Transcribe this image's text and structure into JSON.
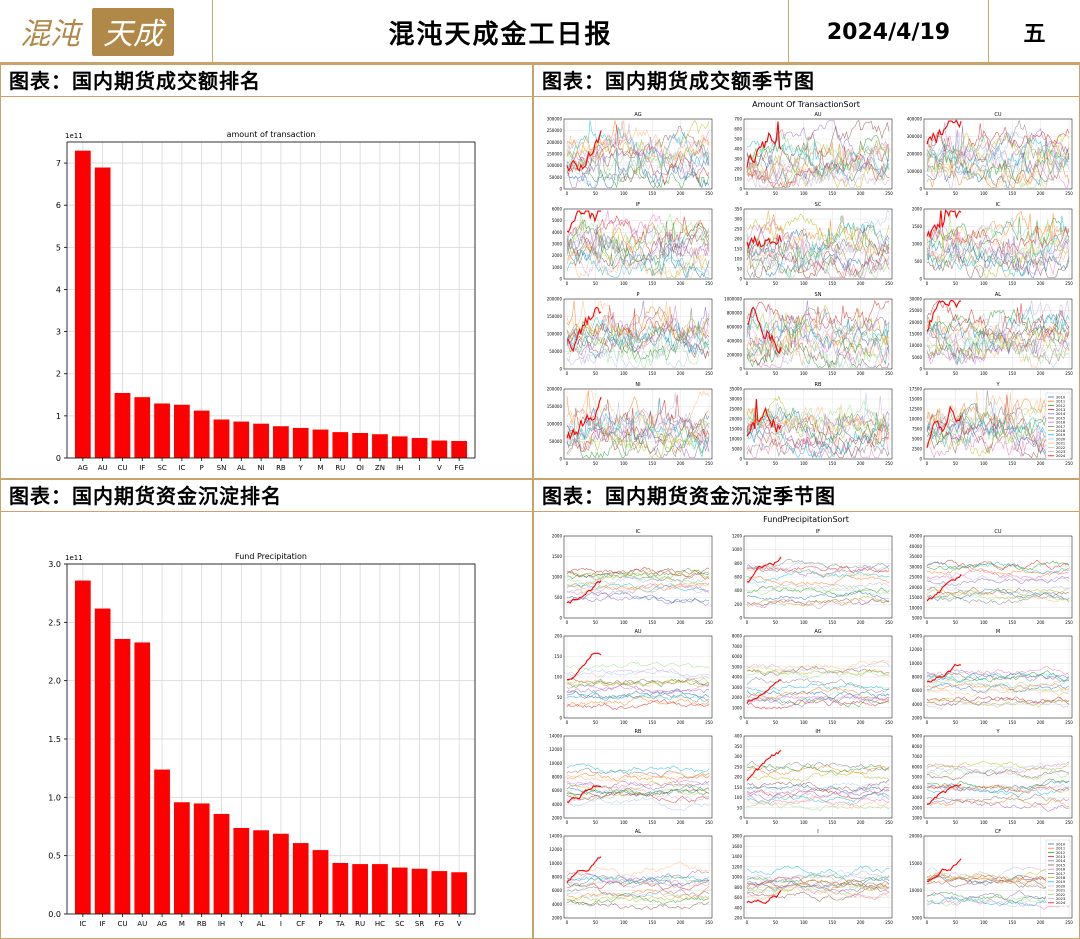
{
  "header": {
    "logo_text": "混沌天成",
    "title": "混沌天成金工日报",
    "date": "2024/4/19",
    "weekday": "五"
  },
  "panels": {
    "p1_title": "图表：国内期货成交额排名",
    "p2_title": "图表：国内期货成交额季节图",
    "p3_title": "图表：国内期货资金沉淀排名",
    "p4_title": "图表：国内期货资金沉淀季节图"
  },
  "colors": {
    "bar": "#ff0000",
    "frame": "#c9a46a",
    "current_year": "#ff0000"
  },
  "chart_data": [
    {
      "id": "transaction_rank",
      "type": "bar",
      "title": "amount of transaction",
      "scale_label": "1e11",
      "categories": [
        "AG",
        "AU",
        "CU",
        "IF",
        "SC",
        "IC",
        "P",
        "SN",
        "AL",
        "NI",
        "RB",
        "Y",
        "M",
        "RU",
        "OI",
        "ZN",
        "IH",
        "I",
        "V",
        "FG"
      ],
      "values": [
        7.3,
        6.9,
        1.55,
        1.45,
        1.3,
        1.27,
        1.13,
        0.92,
        0.87,
        0.82,
        0.76,
        0.72,
        0.68,
        0.62,
        0.6,
        0.57,
        0.52,
        0.48,
        0.42,
        0.41
      ],
      "ylim": [
        0,
        7.5
      ],
      "yticks": [
        "0",
        "1",
        "2",
        "3",
        "4",
        "5",
        "6",
        "7"
      ],
      "grid": true
    },
    {
      "id": "precipitation_rank",
      "type": "bar",
      "title": "Fund Precipitation",
      "scale_label": "1e11",
      "categories": [
        "IC",
        "IF",
        "CU",
        "AU",
        "AG",
        "M",
        "RB",
        "IH",
        "Y",
        "AL",
        "I",
        "CF",
        "P",
        "TA",
        "RU",
        "HC",
        "SC",
        "SR",
        "FG",
        "V"
      ],
      "values": [
        2.86,
        2.62,
        2.36,
        2.33,
        1.24,
        0.96,
        0.95,
        0.86,
        0.74,
        0.72,
        0.69,
        0.61,
        0.55,
        0.44,
        0.43,
        0.43,
        0.4,
        0.39,
        0.37,
        0.36
      ],
      "ylim": [
        0,
        3.0
      ],
      "yticks": [
        "0.0",
        "0.5",
        "1.0",
        "1.5",
        "2.0",
        "2.5",
        "3.0"
      ],
      "grid": true
    },
    {
      "id": "transaction_seasonal",
      "type": "line",
      "title": "Amount Of TransactionSort",
      "xticks": [
        "0",
        "50",
        "100",
        "150",
        "200",
        "250"
      ],
      "legend": [
        "2010",
        "2011",
        "2012",
        "2013",
        "2014",
        "2015",
        "2016",
        "2017",
        "2018",
        "2019",
        "2020",
        "2021",
        "2022",
        "2023",
        "2024"
      ],
      "legend_position": "right",
      "subplots": [
        {
          "name": "AG",
          "yticks": [
            "0",
            "50000",
            "100000",
            "150000",
            "200000",
            "250000",
            "300000"
          ]
        },
        {
          "name": "AU",
          "yticks": [
            "0",
            "100",
            "200",
            "300",
            "400",
            "500",
            "600",
            "700"
          ]
        },
        {
          "name": "CU",
          "yticks": [
            "0",
            "100000",
            "200000",
            "300000",
            "400000"
          ]
        },
        {
          "name": "IF",
          "yticks": [
            "0",
            "1000",
            "2000",
            "3000",
            "4000",
            "5000",
            "6000"
          ]
        },
        {
          "name": "SC",
          "yticks": [
            "0",
            "50",
            "100",
            "150",
            "200",
            "250",
            "300",
            "350"
          ]
        },
        {
          "name": "IC",
          "yticks": [
            "0",
            "500",
            "1000",
            "1500",
            "2000"
          ]
        },
        {
          "name": "P",
          "yticks": [
            "0",
            "50000",
            "100000",
            "150000",
            "200000"
          ]
        },
        {
          "name": "SN",
          "yticks": [
            "0",
            "200000",
            "400000",
            "600000",
            "800000",
            "1000000"
          ]
        },
        {
          "name": "AL",
          "yticks": [
            "0",
            "5000",
            "10000",
            "15000",
            "20000",
            "25000",
            "30000"
          ]
        },
        {
          "name": "NI",
          "yticks": [
            "0",
            "50000",
            "100000",
            "150000",
            "200000"
          ]
        },
        {
          "name": "RB",
          "yticks": [
            "0",
            "5000",
            "10000",
            "15000",
            "20000",
            "25000",
            "30000",
            "35000"
          ]
        },
        {
          "name": "Y",
          "yticks": [
            "0",
            "2500",
            "5000",
            "7500",
            "10000",
            "12500",
            "15000",
            "17500"
          ]
        }
      ]
    },
    {
      "id": "precipitation_seasonal",
      "type": "line",
      "title": "FundPrecipitationSort",
      "xticks": [
        "0",
        "50",
        "100",
        "150",
        "200",
        "250"
      ],
      "legend": [
        "2010",
        "2011",
        "2012",
        "2013",
        "2014",
        "2015",
        "2016",
        "2017",
        "2018",
        "2019",
        "2020",
        "2021",
        "2022",
        "2023",
        "2024"
      ],
      "legend_position": "right",
      "subplots": [
        {
          "name": "IC",
          "yticks": [
            "0",
            "500",
            "1000",
            "1500",
            "2000"
          ]
        },
        {
          "name": "IF",
          "yticks": [
            "0",
            "200",
            "400",
            "600",
            "800",
            "1000",
            "1200"
          ]
        },
        {
          "name": "CU",
          "yticks": [
            "5000",
            "10000",
            "15000",
            "20000",
            "25000",
            "30000",
            "35000",
            "40000",
            "45000"
          ]
        },
        {
          "name": "AU",
          "yticks": [
            "0",
            "50",
            "100",
            "150",
            "200"
          ]
        },
        {
          "name": "AG",
          "yticks": [
            "0",
            "1000",
            "2000",
            "3000",
            "4000",
            "5000",
            "6000",
            "7000",
            "8000"
          ]
        },
        {
          "name": "M",
          "yticks": [
            "2000",
            "4000",
            "6000",
            "8000",
            "10000",
            "12000",
            "14000"
          ]
        },
        {
          "name": "RB",
          "yticks": [
            "2000",
            "4000",
            "6000",
            "8000",
            "10000",
            "12000",
            "14000"
          ]
        },
        {
          "name": "IH",
          "yticks": [
            "0",
            "50",
            "100",
            "150",
            "200",
            "250",
            "300",
            "350",
            "400"
          ]
        },
        {
          "name": "Y",
          "yticks": [
            "1000",
            "2000",
            "3000",
            "4000",
            "5000",
            "6000",
            "7000",
            "8000",
            "9000"
          ]
        },
        {
          "name": "AL",
          "yticks": [
            "2000",
            "4000",
            "6000",
            "8000",
            "10000",
            "12000",
            "14000"
          ]
        },
        {
          "name": "I",
          "yticks": [
            "200",
            "400",
            "600",
            "800",
            "1000",
            "1200",
            "1400",
            "1600",
            "1800"
          ]
        },
        {
          "name": "CF",
          "yticks": [
            "5000",
            "10000",
            "15000",
            "20000"
          ]
        }
      ]
    }
  ]
}
